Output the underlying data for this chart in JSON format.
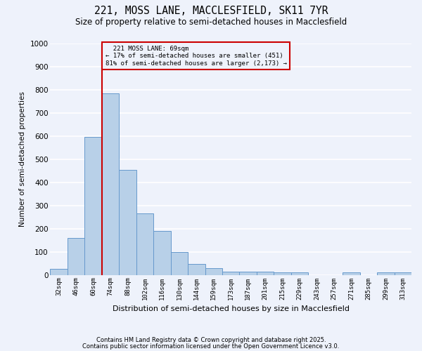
{
  "title1": "221, MOSS LANE, MACCLESFIELD, SK11 7YR",
  "title2": "Size of property relative to semi-detached houses in Macclesfield",
  "xlabel": "Distribution of semi-detached houses by size in Macclesfield",
  "ylabel": "Number of semi-detached properties",
  "categories": [
    "32sqm",
    "46sqm",
    "60sqm",
    "74sqm",
    "88sqm",
    "102sqm",
    "116sqm",
    "130sqm",
    "144sqm",
    "159sqm",
    "173sqm",
    "187sqm",
    "201sqm",
    "215sqm",
    "229sqm",
    "243sqm",
    "257sqm",
    "271sqm",
    "285sqm",
    "299sqm",
    "313sqm"
  ],
  "values": [
    25,
    158,
    595,
    783,
    452,
    265,
    190,
    100,
    47,
    30,
    15,
    15,
    13,
    12,
    12,
    0,
    0,
    10,
    0,
    10,
    12
  ],
  "bar_color": "#b8d0e8",
  "bar_edge_color": "#6699cc",
  "ylim": [
    0,
    1000
  ],
  "yticks": [
    0,
    100,
    200,
    300,
    400,
    500,
    600,
    700,
    800,
    900,
    1000
  ],
  "bg_color": "#eef2fb",
  "grid_color": "#ffffff",
  "vline_color": "#cc0000",
  "annotation_box_color": "#cc0000",
  "property_label": "221 MOSS LANE: 69sqm",
  "pct_smaller": 17,
  "pct_larger": 81,
  "n_smaller": 451,
  "n_larger": 2173,
  "footer1": "Contains HM Land Registry data © Crown copyright and database right 2025.",
  "footer2": "Contains public sector information licensed under the Open Government Licence v3.0."
}
